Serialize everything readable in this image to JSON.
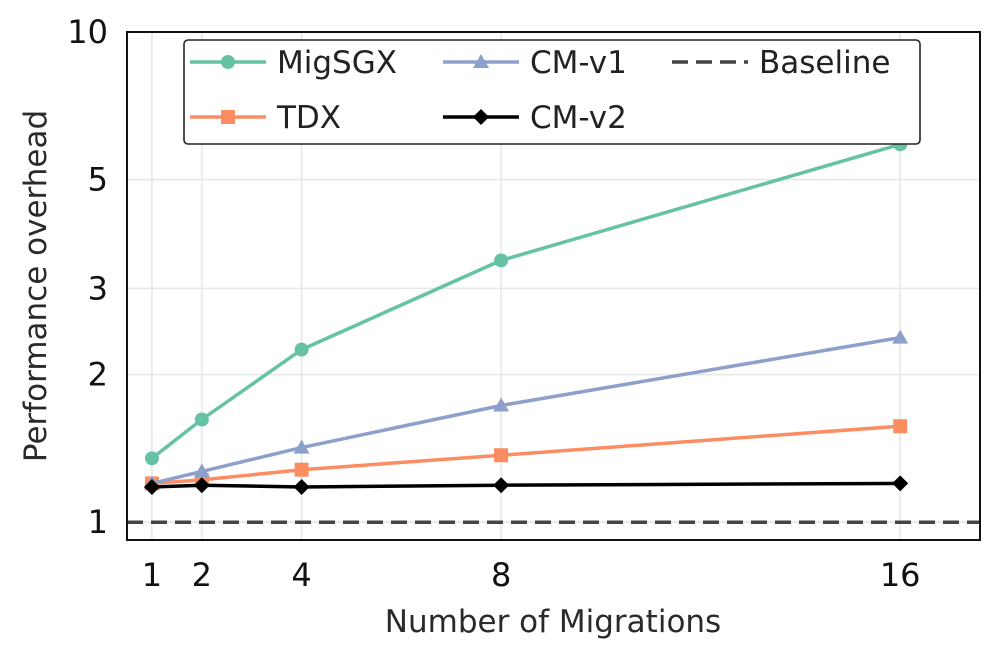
{
  "chart_data": {
    "type": "line",
    "title": "",
    "xlabel": "Number of Migrations",
    "ylabel": "Performance overhead",
    "x": [
      1,
      2,
      4,
      8,
      16
    ],
    "xticks": [
      "1",
      "2",
      "4",
      "8",
      "16"
    ],
    "xlim": [
      0.5,
      17.6
    ],
    "yscale": "log",
    "yticks": [
      "1",
      "2",
      "3",
      "5",
      "10"
    ],
    "ylim": [
      0.92,
      10
    ],
    "grid": true,
    "legend_position": "top",
    "series": [
      {
        "name": "MigSGX",
        "values": [
          1.35,
          1.62,
          2.25,
          3.42,
          5.9
        ],
        "color": "#66c2a5",
        "marker": "circle",
        "line": "solid"
      },
      {
        "name": "TDX",
        "values": [
          1.2,
          1.22,
          1.28,
          1.37,
          1.57
        ],
        "color": "#fc8d62",
        "marker": "square",
        "line": "solid"
      },
      {
        "name": "CM-v1",
        "values": [
          1.2,
          1.27,
          1.42,
          1.73,
          2.38
        ],
        "color": "#8da0cb",
        "marker": "triangle",
        "line": "solid"
      },
      {
        "name": "CM-v2",
        "values": [
          1.18,
          1.19,
          1.18,
          1.19,
          1.2
        ],
        "color": "#000000",
        "marker": "diamond",
        "line": "solid"
      },
      {
        "name": "Baseline",
        "values": [
          1,
          1,
          1,
          1,
          1
        ],
        "color": "#444444",
        "marker": "none",
        "line": "dashed"
      }
    ]
  }
}
